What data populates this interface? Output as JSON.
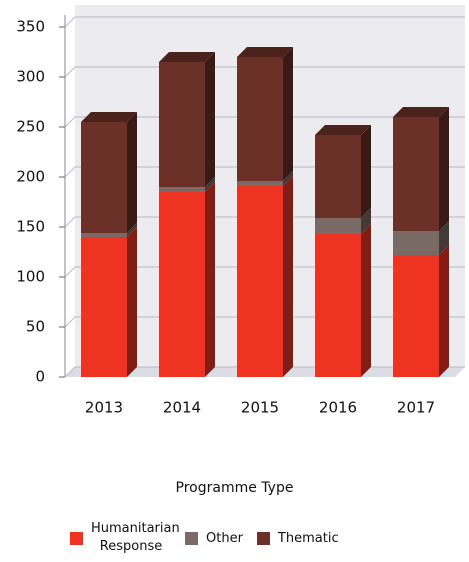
{
  "chart_data": {
    "type": "bar3d_stacked",
    "categories": [
      "2013",
      "2014",
      "2015",
      "2016",
      "2017"
    ],
    "series": [
      {
        "name": "Humanitarian Response",
        "color": "#ee3322",
        "values": [
          140,
          185,
          191,
          143,
          122
        ]
      },
      {
        "name": "Other",
        "color": "#7a6a66",
        "values": [
          4,
          5,
          5,
          16,
          24
        ]
      },
      {
        "name": "Thematic",
        "color": "#6b3028",
        "values": [
          111,
          125,
          124,
          83,
          114
        ]
      }
    ],
    "ylim": [
      0,
      350
    ],
    "yticks": [
      0,
      50,
      100,
      150,
      200,
      250,
      300,
      350
    ],
    "grid": true,
    "legend_title": "Programme Type"
  }
}
